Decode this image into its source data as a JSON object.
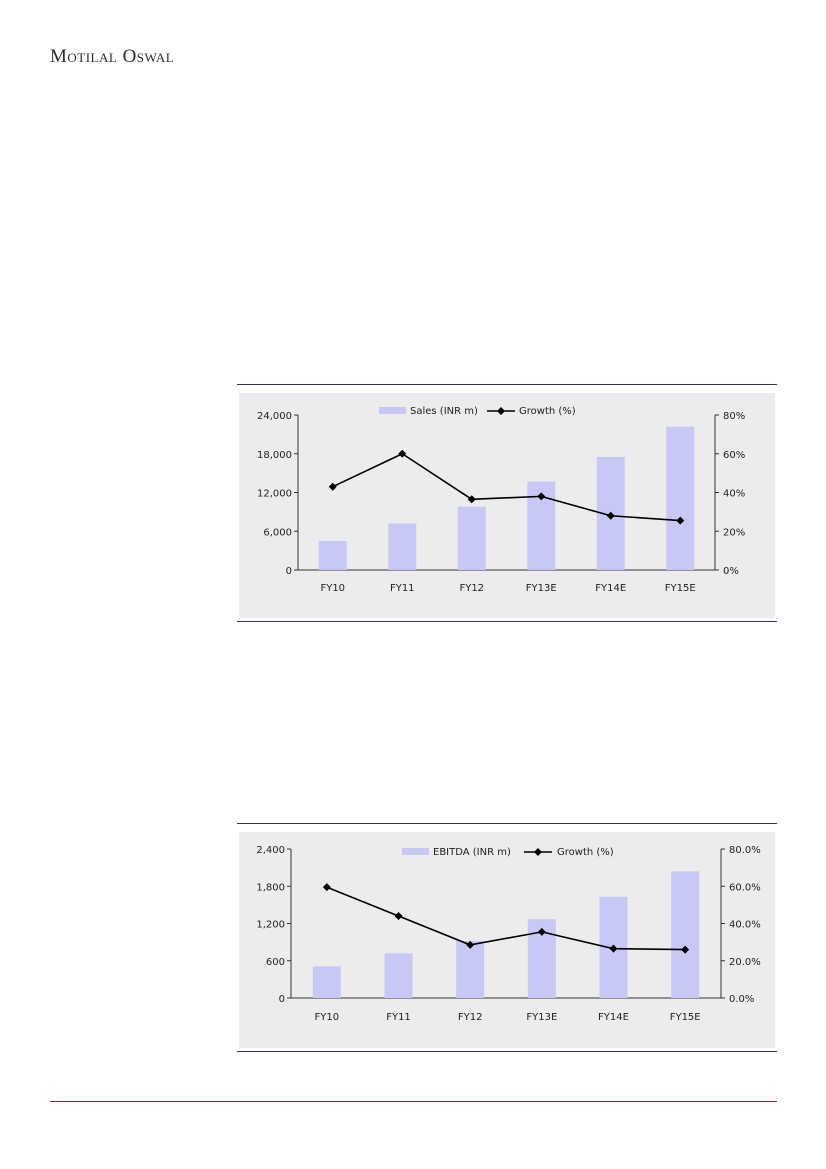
{
  "header": {
    "brand": "Motilal Oswal"
  },
  "chart_data": [
    {
      "type": "bar",
      "categories": [
        "FY10",
        "FY11",
        "FY12",
        "FY13E",
        "FY14E",
        "FY15E"
      ],
      "series": [
        {
          "name": "Sales (INR m)",
          "type": "bar",
          "axis": "left",
          "values": [
            4500,
            7200,
            9800,
            13700,
            17500,
            22200
          ]
        },
        {
          "name": "Growth (%)",
          "type": "line",
          "axis": "right",
          "values": [
            43,
            60,
            36.5,
            38,
            28,
            25.5
          ]
        }
      ],
      "y_left": {
        "min": 0,
        "max": 24000,
        "ticks": [
          "0",
          "6,000",
          "12,000",
          "18,000",
          "24,000"
        ]
      },
      "y_right": {
        "min": 0,
        "max": 80,
        "ticks": [
          "0%",
          "20%",
          "40%",
          "60%",
          "80%"
        ]
      },
      "legend": "top-center",
      "colors": {
        "bar": "#c8c8f6",
        "line": "#000000"
      }
    },
    {
      "type": "bar",
      "categories": [
        "FY10",
        "FY11",
        "FY12",
        "FY13E",
        "FY14E",
        "FY15E"
      ],
      "series": [
        {
          "name": "EBITDA (INR m)",
          "type": "bar",
          "axis": "left",
          "values": [
            510,
            720,
            920,
            1270,
            1630,
            2040
          ]
        },
        {
          "name": "Growth (%)",
          "type": "line",
          "axis": "right",
          "values": [
            59.5,
            44,
            28.5,
            35.5,
            26.5,
            26
          ]
        }
      ],
      "y_left": {
        "min": 0,
        "max": 2400,
        "ticks": [
          "0",
          "600",
          "1,200",
          "1,800",
          "2,400"
        ]
      },
      "y_right": {
        "min": 0,
        "max": 80,
        "ticks": [
          "0.0%",
          "20.0%",
          "40.0%",
          "60.0%",
          "80.0%"
        ]
      },
      "legend": "top-center",
      "colors": {
        "bar": "#c8c8f6",
        "line": "#000000"
      }
    }
  ]
}
